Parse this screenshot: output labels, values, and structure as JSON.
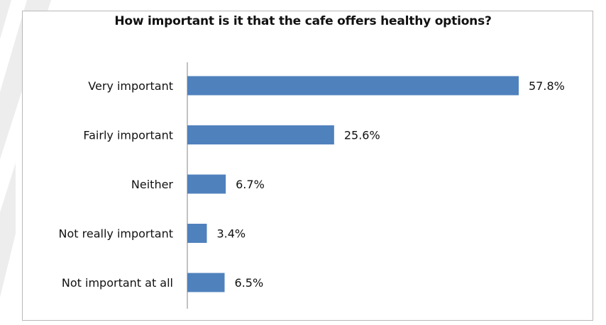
{
  "chart_data": {
    "type": "bar",
    "orientation": "horizontal",
    "title": "How important is it that the cafe offers healthy options?",
    "categories": [
      "Very important",
      "Fairly important",
      "Neither",
      "Not really important",
      "Not important at all"
    ],
    "values": [
      57.8,
      25.6,
      6.7,
      3.4,
      6.5
    ],
    "value_labels": [
      "57.8%",
      "25.6%",
      "6.7%",
      "3.4%",
      "6.5%"
    ],
    "unit": "%",
    "xlim": [
      0,
      62
    ],
    "grid": false,
    "legend": "none"
  },
  "colors": {
    "bar": "#4f81bd",
    "axis": "#868686",
    "border": "#b8b8b8",
    "text": "#111111"
  }
}
